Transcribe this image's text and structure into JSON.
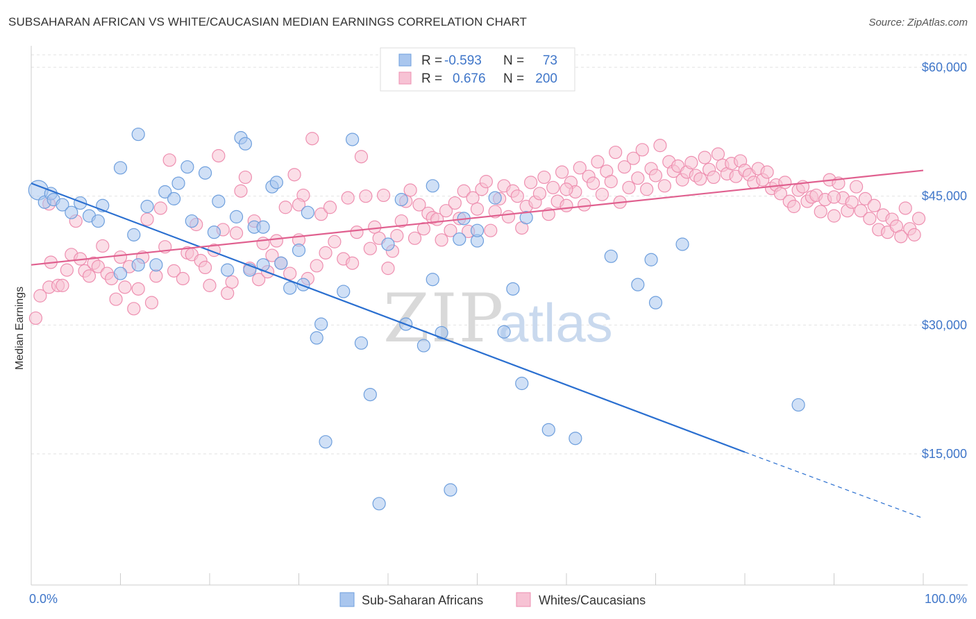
{
  "title": "SUBSAHARAN AFRICAN VS WHITE/CAUCASIAN MEDIAN EARNINGS CORRELATION CHART",
  "source": "Source: ZipAtlas.com",
  "colors": {
    "blue": "#6e9fdd",
    "blue_fill": "#a9c6ee",
    "blue_line": "#2a6fd0",
    "pink": "#ee8fb0",
    "pink_fill": "#f7c2d4",
    "pink_line": "#e0608f",
    "tick_text": "#3f76c9"
  },
  "legend": {
    "rows": [
      {
        "r_label": "R =",
        "r_value": "-0.593",
        "n_label": "N =",
        "n_value": "73",
        "color": "blue"
      },
      {
        "r_label": "R =",
        "r_value": "0.676",
        "n_label": "N =",
        "n_value": "200",
        "color": "pink"
      }
    ]
  },
  "bottom_legend": [
    "Sub-Saharan Africans",
    "Whites/Caucasians"
  ],
  "chart_data": {
    "type": "scatter",
    "title": "SUBSAHARAN AFRICAN VS WHITE/CAUCASIAN MEDIAN EARNINGS CORRELATION CHART",
    "xlabel": "",
    "ylabel": "Median Earnings",
    "xlim": [
      0,
      100
    ],
    "ylim": [
      2000,
      63000
    ],
    "x_tick_labels": [
      "0.0%",
      "100.0%"
    ],
    "y_ticks": [
      15000,
      30000,
      45000,
      60000
    ],
    "y_tick_labels": [
      "$15,000",
      "$30,000",
      "$45,000",
      "$60,000"
    ],
    "grid": true,
    "legend_position": "top-center",
    "series": [
      {
        "name": "Sub-Saharan Africans",
        "color": "blue",
        "trend": {
          "x": [
            0,
            80
          ],
          "y": [
            46500,
            15200
          ],
          "dashed_to": [
            100,
            7500
          ]
        },
        "points": [
          [
            0.8,
            45700
          ],
          [
            1.5,
            44300
          ],
          [
            2.2,
            45300
          ],
          [
            2.5,
            44600
          ],
          [
            3.5,
            44000
          ],
          [
            4.5,
            43100
          ],
          [
            5.5,
            44200
          ],
          [
            6.5,
            42700
          ],
          [
            7.5,
            42100
          ],
          [
            8,
            43900
          ],
          [
            10,
            48300
          ],
          [
            11.5,
            40500
          ],
          [
            12,
            37000
          ],
          [
            10,
            36000
          ],
          [
            13,
            43800
          ],
          [
            14,
            37000
          ],
          [
            15,
            45500
          ],
          [
            12,
            52200
          ],
          [
            16,
            44700
          ],
          [
            16.5,
            46500
          ],
          [
            18,
            42100
          ],
          [
            17.5,
            48400
          ],
          [
            19.5,
            47700
          ],
          [
            20.5,
            40800
          ],
          [
            21,
            44400
          ],
          [
            22,
            36400
          ],
          [
            23.5,
            51800
          ],
          [
            24,
            51100
          ],
          [
            23,
            42600
          ],
          [
            24.5,
            36400
          ],
          [
            25,
            41400
          ],
          [
            26,
            41400
          ],
          [
            27,
            46100
          ],
          [
            27.5,
            46600
          ],
          [
            26,
            37000
          ],
          [
            28,
            37200
          ],
          [
            29,
            34300
          ],
          [
            30,
            38700
          ],
          [
            30.5,
            34700
          ],
          [
            31,
            43100
          ],
          [
            32,
            28500
          ],
          [
            32.5,
            30100
          ],
          [
            33,
            16400
          ],
          [
            35,
            33900
          ],
          [
            36,
            51600
          ],
          [
            37,
            27900
          ],
          [
            38,
            21900
          ],
          [
            39,
            9200
          ],
          [
            40,
            39400
          ],
          [
            41.5,
            44600
          ],
          [
            42,
            30100
          ],
          [
            44,
            27600
          ],
          [
            45,
            46200
          ],
          [
            45,
            35300
          ],
          [
            46,
            29100
          ],
          [
            47,
            10800
          ],
          [
            48,
            40000
          ],
          [
            48.5,
            42400
          ],
          [
            50,
            39800
          ],
          [
            53,
            29200
          ],
          [
            54,
            34200
          ],
          [
            55,
            23200
          ],
          [
            55.5,
            42500
          ],
          [
            58,
            17800
          ],
          [
            61,
            16800
          ],
          [
            65,
            38000
          ],
          [
            68,
            34700
          ],
          [
            70,
            32600
          ],
          [
            69.5,
            37600
          ],
          [
            73,
            39400
          ],
          [
            86,
            20700
          ],
          [
            52,
            44800
          ],
          [
            50,
            41000
          ]
        ]
      },
      {
        "name": "Whites/Caucasians",
        "color": "pink",
        "trend": {
          "x": [
            0,
            100
          ],
          "y": [
            37000,
            48000
          ]
        },
        "points": [
          [
            0.5,
            30800
          ],
          [
            1,
            33400
          ],
          [
            2,
            34400
          ],
          [
            2.2,
            37300
          ],
          [
            3,
            34600
          ],
          [
            3.5,
            34600
          ],
          [
            4,
            36400
          ],
          [
            4.5,
            38200
          ],
          [
            5,
            42100
          ],
          [
            5.5,
            37700
          ],
          [
            6,
            36300
          ],
          [
            6.5,
            35700
          ],
          [
            7,
            37200
          ],
          [
            7.5,
            36800
          ],
          [
            8,
            39200
          ],
          [
            8.5,
            36000
          ],
          [
            9,
            35400
          ],
          [
            9.5,
            33000
          ],
          [
            10,
            37900
          ],
          [
            10.5,
            34400
          ],
          [
            11,
            36800
          ],
          [
            11.5,
            31900
          ],
          [
            12,
            34200
          ],
          [
            12.5,
            37900
          ],
          [
            13,
            42300
          ],
          [
            13.5,
            32600
          ],
          [
            14,
            35700
          ],
          [
            14.5,
            43600
          ],
          [
            15,
            39100
          ],
          [
            15.5,
            49200
          ],
          [
            16,
            36300
          ],
          [
            17,
            35400
          ],
          [
            17.5,
            38400
          ],
          [
            18,
            38200
          ],
          [
            18.5,
            41700
          ],
          [
            19,
            37500
          ],
          [
            19.5,
            36700
          ],
          [
            20,
            34600
          ],
          [
            20.5,
            38700
          ],
          [
            21,
            49700
          ],
          [
            21.5,
            41100
          ],
          [
            22,
            33700
          ],
          [
            22.5,
            35000
          ],
          [
            23,
            40700
          ],
          [
            23.5,
            45600
          ],
          [
            24,
            47200
          ],
          [
            24.5,
            36600
          ],
          [
            25,
            42100
          ],
          [
            25.5,
            35300
          ],
          [
            26,
            39500
          ],
          [
            26.5,
            36200
          ],
          [
            27,
            38100
          ],
          [
            27.5,
            39800
          ],
          [
            28,
            37200
          ],
          [
            28.5,
            43700
          ],
          [
            29,
            36000
          ],
          [
            29.5,
            47500
          ],
          [
            30,
            39900
          ],
          [
            30.5,
            45100
          ],
          [
            31,
            35400
          ],
          [
            31.5,
            51700
          ],
          [
            32,
            36900
          ],
          [
            32.5,
            42900
          ],
          [
            33,
            38400
          ],
          [
            33.5,
            43700
          ],
          [
            34,
            39700
          ],
          [
            35,
            37700
          ],
          [
            35.5,
            44800
          ],
          [
            36,
            37200
          ],
          [
            36.5,
            40800
          ],
          [
            37,
            49600
          ],
          [
            37.5,
            45000
          ],
          [
            38,
            38900
          ],
          [
            38.5,
            41400
          ],
          [
            39,
            40100
          ],
          [
            39.5,
            45100
          ],
          [
            40,
            36600
          ],
          [
            40.5,
            38600
          ],
          [
            41,
            40400
          ],
          [
            41.5,
            42100
          ],
          [
            42,
            44400
          ],
          [
            42.5,
            45700
          ],
          [
            43,
            40100
          ],
          [
            43.5,
            44000
          ],
          [
            44,
            41200
          ],
          [
            44.5,
            43000
          ],
          [
            45,
            42500
          ],
          [
            45.5,
            42300
          ],
          [
            46,
            39900
          ],
          [
            46.5,
            43300
          ],
          [
            47,
            41000
          ],
          [
            47.5,
            44200
          ],
          [
            48,
            42400
          ],
          [
            48.5,
            45600
          ],
          [
            49,
            40900
          ],
          [
            49.5,
            44800
          ],
          [
            50,
            43500
          ],
          [
            50.5,
            45800
          ],
          [
            51,
            46700
          ],
          [
            51.5,
            41000
          ],
          [
            52,
            43200
          ],
          [
            52.5,
            44700
          ],
          [
            53,
            46200
          ],
          [
            53.5,
            42600
          ],
          [
            54,
            45600
          ],
          [
            54.5,
            45000
          ],
          [
            55,
            41300
          ],
          [
            55.5,
            43800
          ],
          [
            56,
            46600
          ],
          [
            56.5,
            44300
          ],
          [
            57,
            45300
          ],
          [
            57.5,
            47200
          ],
          [
            58,
            42900
          ],
          [
            58.5,
            46000
          ],
          [
            59,
            44400
          ],
          [
            59.5,
            47800
          ],
          [
            60,
            43900
          ],
          [
            60.5,
            46600
          ],
          [
            61,
            45500
          ],
          [
            61.5,
            48300
          ],
          [
            62,
            44000
          ],
          [
            62.5,
            47300
          ],
          [
            63,
            46500
          ],
          [
            63.5,
            49000
          ],
          [
            64,
            45200
          ],
          [
            64.5,
            47900
          ],
          [
            65,
            46700
          ],
          [
            65.5,
            50100
          ],
          [
            66,
            44300
          ],
          [
            66.5,
            48400
          ],
          [
            67,
            46000
          ],
          [
            67.5,
            49400
          ],
          [
            68,
            47100
          ],
          [
            68.5,
            50400
          ],
          [
            69,
            45800
          ],
          [
            69.5,
            48200
          ],
          [
            70,
            47400
          ],
          [
            70.5,
            50900
          ],
          [
            71,
            46200
          ],
          [
            71.5,
            49000
          ],
          [
            72,
            47900
          ],
          [
            72.5,
            48500
          ],
          [
            73,
            46900
          ],
          [
            73.5,
            47800
          ],
          [
            74,
            48900
          ],
          [
            74.5,
            47400
          ],
          [
            75,
            47000
          ],
          [
            75.5,
            49500
          ],
          [
            76,
            48100
          ],
          [
            76.5,
            47200
          ],
          [
            77,
            49900
          ],
          [
            77.5,
            48600
          ],
          [
            78,
            47600
          ],
          [
            78.5,
            48800
          ],
          [
            79,
            47300
          ],
          [
            79.5,
            49100
          ],
          [
            80,
            48000
          ],
          [
            80.5,
            47500
          ],
          [
            81,
            46600
          ],
          [
            81.5,
            48200
          ],
          [
            82,
            46900
          ],
          [
            82.5,
            47800
          ],
          [
            83,
            45900
          ],
          [
            83.5,
            46300
          ],
          [
            84,
            45300
          ],
          [
            84.5,
            46600
          ],
          [
            85,
            44400
          ],
          [
            85.5,
            43800
          ],
          [
            86,
            45700
          ],
          [
            86.5,
            46100
          ],
          [
            87,
            44400
          ],
          [
            87.5,
            44900
          ],
          [
            88,
            45100
          ],
          [
            88.5,
            43200
          ],
          [
            89,
            44600
          ],
          [
            89.5,
            46900
          ],
          [
            90,
            42700
          ],
          [
            90.5,
            46500
          ],
          [
            91,
            44800
          ],
          [
            91.5,
            43300
          ],
          [
            92,
            44300
          ],
          [
            92.5,
            46100
          ],
          [
            93,
            43300
          ],
          [
            93.5,
            44700
          ],
          [
            94,
            42400
          ],
          [
            94.5,
            43900
          ],
          [
            95,
            41100
          ],
          [
            95.5,
            42800
          ],
          [
            96,
            40800
          ],
          [
            96.5,
            42300
          ],
          [
            97,
            41500
          ],
          [
            97.5,
            40300
          ],
          [
            98,
            43600
          ],
          [
            98.5,
            41200
          ],
          [
            99,
            40500
          ],
          [
            99.5,
            42400
          ],
          [
            2,
            44100
          ],
          [
            30,
            44000
          ],
          [
            60,
            45800
          ],
          [
            90,
            44900
          ]
        ]
      }
    ]
  }
}
